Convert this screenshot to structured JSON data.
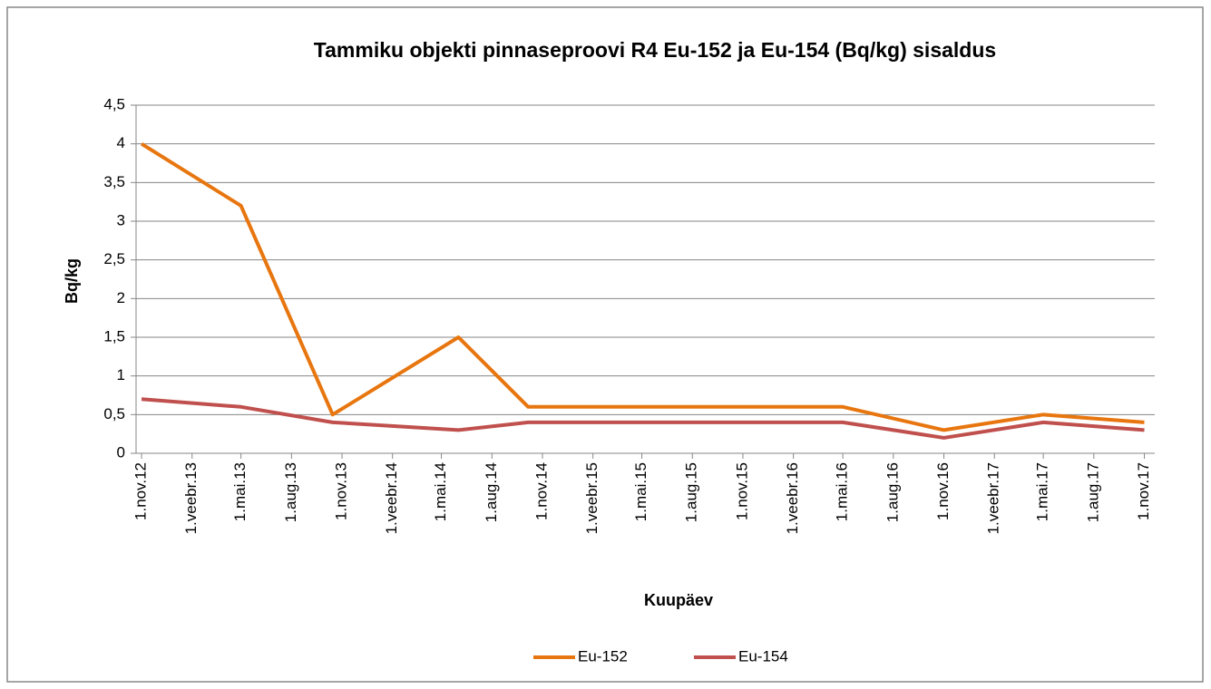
{
  "chart_data": {
    "type": "line",
    "title": "Tammiku objekti pinnaseproovi R4 Eu-152 ja Eu-154 (Bq/kg) sisaldus",
    "x_label": "Kuupäev",
    "y_label": "Bq/kg",
    "x": [
      "2012-11-01",
      "2013-05-01",
      "2013-10-15",
      "2014-06-01",
      "2014-10-06",
      "2016-05-01",
      "2016-11-01",
      "2017-05-01",
      "2017-11-01"
    ],
    "series": [
      {
        "name": "Eu-152",
        "color": "#e8760f",
        "values": [
          4,
          3.2,
          0.5,
          1.5,
          0.6,
          0.6,
          0.3,
          0.5,
          0.4
        ]
      },
      {
        "name": "Eu-154",
        "color": "#c0504d",
        "values": [
          0.7,
          0.6,
          0.4,
          0.3,
          0.4,
          0.4,
          0.2,
          0.4,
          0.3
        ]
      }
    ],
    "xlim": [
      "2012-10-22",
      "2017-11-20"
    ],
    "xticks": [
      {
        "value": "2012-11-01",
        "label": "1.nov.12"
      },
      {
        "value": "2013-02-01",
        "label": "1.veebr.13"
      },
      {
        "value": "2013-05-01",
        "label": "1.mai.13"
      },
      {
        "value": "2013-08-01",
        "label": "1.aug.13"
      },
      {
        "value": "2013-11-01",
        "label": "1.nov.13"
      },
      {
        "value": "2014-02-01",
        "label": "1.veebr.14"
      },
      {
        "value": "2014-05-01",
        "label": "1.mai.14"
      },
      {
        "value": "2014-08-01",
        "label": "1.aug.14"
      },
      {
        "value": "2014-11-01",
        "label": "1.nov.14"
      },
      {
        "value": "2015-02-01",
        "label": "1.veebr.15"
      },
      {
        "value": "2015-05-01",
        "label": "1.mai.15"
      },
      {
        "value": "2015-08-01",
        "label": "1.aug.15"
      },
      {
        "value": "2015-11-01",
        "label": "1.nov.15"
      },
      {
        "value": "2016-02-01",
        "label": "1.veebr.16"
      },
      {
        "value": "2016-05-01",
        "label": "1.mai.16"
      },
      {
        "value": "2016-08-01",
        "label": "1.aug.16"
      },
      {
        "value": "2016-11-01",
        "label": "1.nov.16"
      },
      {
        "value": "2017-02-01",
        "label": "1.veebr.17"
      },
      {
        "value": "2017-05-01",
        "label": "1.mai.17"
      },
      {
        "value": "2017-08-01",
        "label": "1.aug.17"
      },
      {
        "value": "2017-11-01",
        "label": "1.nov.17"
      }
    ],
    "ylim": [
      0,
      4.5
    ],
    "yticks": [
      0,
      {
        "value": 0.5,
        "label": "0,5"
      },
      1,
      {
        "value": 1.5,
        "label": "1,5"
      },
      2,
      {
        "value": 2.5,
        "label": "2,5"
      },
      3,
      {
        "value": 3.5,
        "label": "3,5"
      },
      4,
      {
        "value": 4.5,
        "label": "4,5"
      }
    ],
    "grid": true,
    "legend": "bottom"
  }
}
